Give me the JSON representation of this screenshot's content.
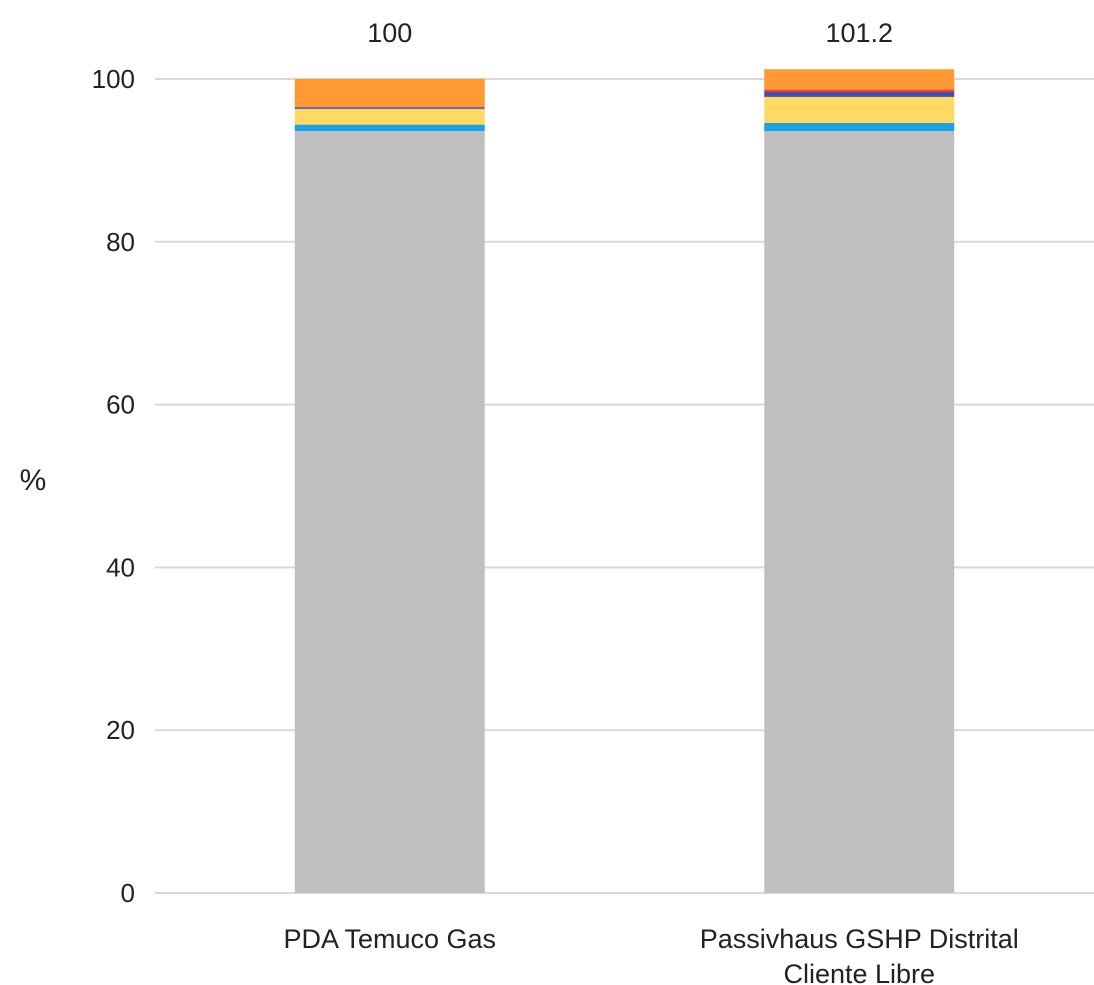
{
  "chart_data": {
    "type": "bar",
    "stacked": true,
    "categories": [
      [
        "PDA Temuco Gas"
      ],
      [
        "Passivhaus GSHP Distrital",
        "Cliente Libre"
      ]
    ],
    "series": [
      {
        "color": "#bfbfbf",
        "values": [
          93.6,
          93.6
        ]
      },
      {
        "color": "#1fa1dd",
        "values": [
          0.8,
          1.0
        ]
      },
      {
        "color": "#ffd966",
        "values": [
          1.9,
          3.2
        ]
      },
      {
        "color": "#7f6a8e",
        "values": [
          0.3,
          0.0
        ]
      },
      {
        "color": "#3f51a0",
        "values": [
          0.0,
          0.6
        ]
      },
      {
        "color": "#e8404a",
        "values": [
          0.0,
          0.3
        ]
      },
      {
        "color": "#ff9933",
        "values": [
          3.4,
          2.5
        ]
      }
    ],
    "totals": [
      "100",
      "101.2"
    ],
    "xlabel": "",
    "ylabel": "%",
    "ylim": [
      0,
      100
    ],
    "yticks": [
      0,
      20,
      40,
      60,
      80,
      100
    ],
    "grid": true,
    "legend": false
  }
}
